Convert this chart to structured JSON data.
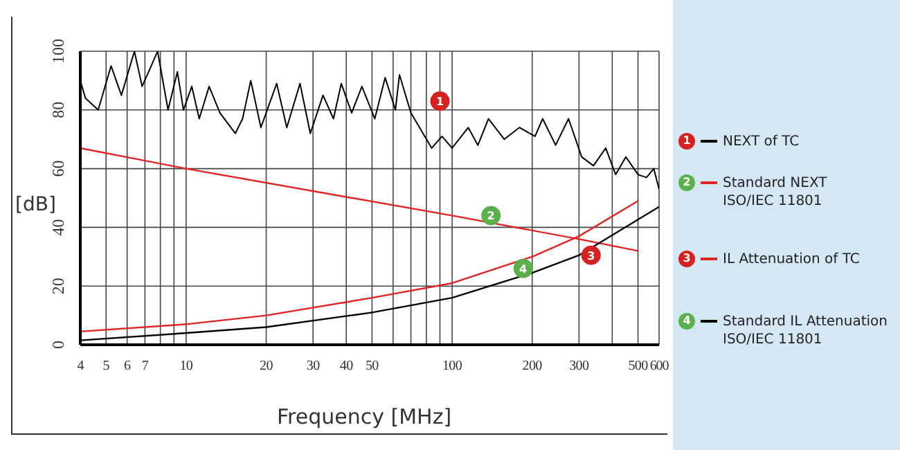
{
  "chart_data": {
    "type": "line",
    "xlabel": "Frequency [MHz]",
    "ylabel": "[dB]",
    "log": "x",
    "grid": true,
    "legend": "right",
    "marker": "none",
    "line_style": "solid",
    "xlim": [
      4,
      600
    ],
    "ylim": [
      0,
      100
    ],
    "xticks": [
      4,
      5,
      6,
      7,
      {
        "value": 8,
        "label": null
      },
      {
        "value": 9,
        "label": null
      },
      10,
      20,
      30,
      40,
      50,
      {
        "value": 60,
        "label": null
      },
      {
        "value": 70,
        "label": null
      },
      {
        "value": 80,
        "label": null
      },
      {
        "value": 90,
        "label": null
      },
      100,
      200,
      300,
      {
        "value": 400,
        "label": null
      },
      500,
      600
    ],
    "yticks": [
      0,
      20,
      40,
      60,
      80,
      100
    ],
    "series": [
      {
        "name": "NEXT of TC",
        "color": "#000000",
        "x": [
          4,
          4.18,
          4.67,
          5.22,
          5.71,
          6.39,
          6.83,
          7.31,
          7.81,
          8.55,
          9.27,
          9.77,
          10.5,
          11.2,
          12.2,
          13.4,
          15.3,
          16.3,
          17.5,
          19.1,
          21.9,
          23.9,
          26.8,
          29.3,
          32.7,
          35.8,
          38.3,
          41.9,
          45.8,
          51.2,
          56,
          61.2,
          63.4,
          70,
          76.6,
          83.8,
          91.6,
          100,
          115,
          125,
          137,
          157,
          179,
          205,
          219,
          245,
          274,
          307,
          340,
          378,
          412,
          450,
          500,
          538,
          573,
          600
        ],
        "values": [
          90,
          84,
          80,
          95,
          85,
          100,
          88,
          94,
          100,
          80,
          93,
          80,
          88,
          77,
          88,
          79,
          72,
          77,
          90,
          74,
          89,
          74,
          89,
          72,
          85,
          77,
          89,
          79,
          88,
          77,
          91,
          80,
          92,
          79,
          73,
          67,
          71,
          67,
          74,
          68,
          77,
          70,
          74,
          71,
          77,
          68,
          77,
          64,
          61,
          67,
          58,
          64,
          58,
          57,
          60,
          53
        ]
      },
      {
        "name": "Standard NEXT\nISO/IEC 11801",
        "color": "#e02424",
        "x": [
          4,
          10,
          100,
          300,
          500
        ],
        "values": [
          67,
          60,
          44,
          36,
          32
        ]
      },
      {
        "name": "IL Attenuation of TC",
        "color": "#e02424",
        "x": [
          4,
          10,
          20,
          50,
          100,
          200,
          300,
          500
        ],
        "values": [
          4.5,
          7,
          10,
          16,
          21,
          30,
          37,
          49
        ]
      },
      {
        "name": "Standard IL Attenuation\nISO/IEC 11801",
        "color": "#000000",
        "x": [
          4,
          10,
          20,
          50,
          100,
          200,
          300,
          600
        ],
        "values": [
          1.5,
          4,
          6,
          11,
          16,
          24.5,
          30.5,
          47
        ]
      }
    ],
    "annotations": [
      {
        "text": "1",
        "x": 90,
        "y": 83
      },
      {
        "text": "2",
        "x": 140,
        "y": 44
      },
      {
        "text": "3",
        "x": 333,
        "y": 30.5
      },
      {
        "text": "4",
        "x": 185,
        "y": 26
      }
    ]
  }
}
